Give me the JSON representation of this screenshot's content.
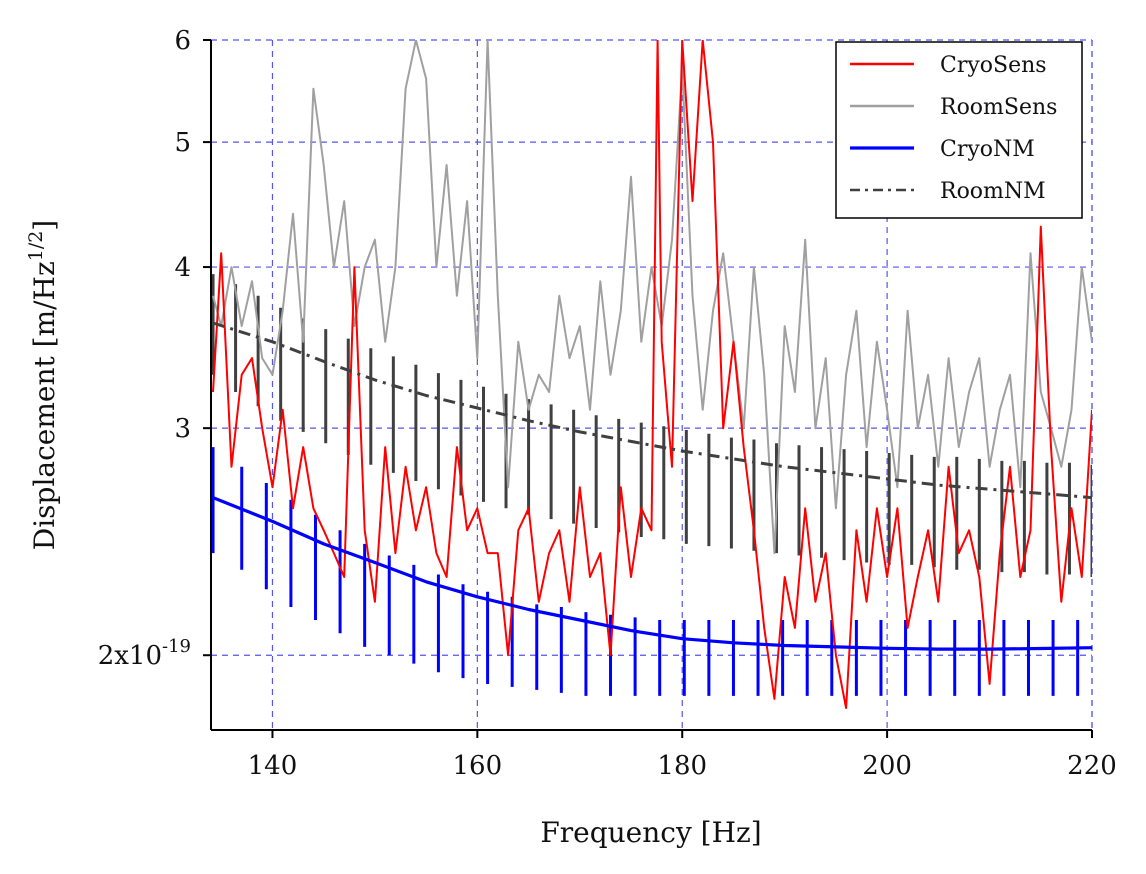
{
  "chart_data": {
    "type": "line",
    "xlabel": "Frequency [Hz]",
    "ylabel": "Displacement [m/Hz",
    "ylabel_sup": "1/2",
    "ylabel_close": "]",
    "xlim": [
      134,
      220
    ],
    "ylim": [
      1.75,
      6
    ],
    "y_scale": "log",
    "grid": true,
    "grid_color": "#5555ee",
    "legend_position": "top-right",
    "x_ticks": [
      140,
      160,
      180,
      200,
      220
    ],
    "x_tick_labels": [
      "140",
      "160",
      "180",
      "200",
      "220"
    ],
    "y_ticks": [
      2,
      3,
      4,
      5,
      6
    ],
    "y_tick_labels": [
      {
        "base": "2x10",
        "sup": "-19"
      },
      {
        "base": "3",
        "sup": ""
      },
      {
        "base": "4",
        "sup": ""
      },
      {
        "base": "5",
        "sup": ""
      },
      {
        "base": "6",
        "sup": ""
      }
    ],
    "series": [
      {
        "name": "CryoSens",
        "color": "#ff0000",
        "style": "solid",
        "x": [
          134.2,
          135,
          136,
          137,
          138,
          139,
          140,
          141,
          142,
          143,
          144,
          145,
          146,
          147,
          148,
          149,
          150,
          151,
          152,
          153,
          154,
          155,
          156,
          157,
          158,
          159,
          160,
          161,
          162,
          163,
          164,
          165,
          166,
          167,
          168,
          169,
          170,
          171,
          172,
          173,
          174,
          175,
          176,
          177,
          177.6,
          178,
          179,
          180,
          181,
          182,
          183,
          184,
          185,
          186,
          187,
          188,
          189,
          190,
          191,
          192,
          193,
          194,
          195,
          196,
          197,
          198,
          199,
          200,
          201,
          202,
          203,
          204,
          205,
          206,
          207,
          208,
          209,
          210,
          211,
          212,
          213,
          214,
          215,
          216,
          217,
          218,
          219,
          220
        ],
        "y": [
          3.2,
          4.1,
          2.8,
          3.3,
          3.4,
          3.0,
          2.7,
          3.1,
          2.6,
          2.9,
          2.6,
          2.5,
          2.4,
          2.3,
          4.0,
          2.5,
          2.2,
          2.9,
          2.4,
          2.8,
          2.5,
          2.7,
          2.4,
          2.3,
          2.9,
          2.5,
          2.6,
          2.4,
          2.4,
          2.0,
          2.5,
          2.6,
          2.2,
          2.4,
          2.5,
          2.2,
          2.7,
          2.3,
          2.4,
          2.0,
          2.7,
          2.3,
          2.6,
          2.5,
          6.0,
          3.5,
          2.8,
          6.0,
          4.5,
          6.0,
          5.0,
          3.0,
          3.5,
          2.9,
          2.5,
          2.1,
          1.85,
          2.3,
          2.1,
          2.6,
          2.2,
          2.4,
          2.0,
          1.82,
          2.5,
          2.2,
          2.6,
          2.3,
          2.6,
          2.1,
          2.3,
          2.5,
          2.2,
          2.8,
          2.4,
          2.5,
          2.3,
          1.9,
          2.4,
          2.8,
          2.3,
          2.5,
          4.3,
          2.9,
          2.2,
          2.6,
          2.3,
          3.1
        ]
      },
      {
        "name": "RoomSens",
        "color": "#a0a0a0",
        "style": "solid",
        "x": [
          134.2,
          135,
          136,
          137,
          138,
          139,
          140,
          141,
          142,
          143,
          144,
          145,
          146,
          147,
          148,
          149,
          150,
          151,
          152,
          153,
          154,
          155,
          156,
          157,
          158,
          159,
          160,
          161,
          162,
          163,
          164,
          165,
          166,
          167,
          168,
          169,
          170,
          171,
          172,
          173,
          174,
          175,
          176,
          177,
          178,
          179,
          180,
          181,
          182,
          183,
          184,
          185,
          186,
          187,
          188,
          189,
          190,
          191,
          192,
          193,
          194,
          195,
          196,
          197,
          198,
          199,
          200,
          201,
          202,
          203,
          204,
          205,
          206,
          207,
          208,
          209,
          210,
          211,
          212,
          213,
          214,
          215,
          216,
          217,
          218,
          219,
          220
        ],
        "y": [
          3.8,
          3.6,
          4.0,
          3.6,
          3.9,
          3.4,
          3.3,
          3.7,
          4.4,
          3.5,
          5.5,
          4.8,
          4.0,
          4.5,
          3.6,
          4.0,
          4.2,
          3.5,
          4.0,
          5.5,
          6.0,
          5.6,
          4.0,
          4.8,
          3.8,
          4.5,
          3.4,
          6.0,
          3.8,
          2.7,
          3.5,
          3.1,
          3.3,
          3.2,
          3.8,
          3.4,
          3.6,
          3.1,
          3.9,
          3.3,
          3.7,
          4.7,
          3.5,
          4.0,
          3.6,
          4.2,
          5.7,
          3.8,
          3.1,
          3.7,
          4.1,
          3.5,
          3.0,
          4.0,
          3.3,
          2.4,
          3.6,
          3.2,
          4.2,
          3.0,
          3.4,
          2.6,
          3.3,
          3.7,
          2.9,
          3.5,
          3.1,
          2.7,
          3.7,
          3.0,
          3.3,
          2.8,
          3.4,
          2.9,
          3.2,
          3.4,
          2.8,
          3.1,
          3.3,
          2.7,
          4.1,
          3.2,
          3.0,
          2.8,
          3.1,
          4.0,
          3.5
        ]
      },
      {
        "name": "CryoNM",
        "color": "#0000ff",
        "style": "solid",
        "x": [
          134.2,
          140,
          145,
          150,
          155,
          160,
          165,
          170,
          175,
          180,
          185,
          190,
          195,
          200,
          205,
          210,
          215,
          220
        ],
        "y": [
          2.65,
          2.54,
          2.44,
          2.36,
          2.28,
          2.22,
          2.17,
          2.13,
          2.09,
          2.06,
          2.045,
          2.035,
          2.03,
          2.025,
          2.022,
          2.022,
          2.024,
          2.027
        ],
        "error_bars": {
          "x": [
            134.2,
            137,
            139.4,
            141.8,
            144.2,
            146.6,
            149,
            151.4,
            153.8,
            156.2,
            158.6,
            161,
            163.4,
            165.8,
            168.2,
            170.6,
            173,
            175.4,
            177.8,
            180.2,
            182.6,
            185,
            187.4,
            189.8,
            192.2,
            194.6,
            197,
            199.4,
            201.8,
            204.2,
            206.6,
            209,
            211.4,
            213.8,
            216.2,
            218.6
          ],
          "low": [
            2.4,
            2.33,
            2.25,
            2.18,
            2.13,
            2.08,
            2.03,
            2.0,
            1.97,
            1.94,
            1.92,
            1.9,
            1.89,
            1.88,
            1.87,
            1.86,
            1.86,
            1.86,
            1.86,
            1.86,
            1.86,
            1.86,
            1.86,
            1.86,
            1.86,
            1.86,
            1.86,
            1.86,
            1.86,
            1.86,
            1.86,
            1.86,
            1.86,
            1.86,
            1.86,
            1.86
          ],
          "high": [
            2.9,
            2.8,
            2.72,
            2.64,
            2.57,
            2.5,
            2.44,
            2.39,
            2.35,
            2.31,
            2.27,
            2.24,
            2.22,
            2.19,
            2.18,
            2.16,
            2.15,
            2.14,
            2.13,
            2.13,
            2.13,
            2.13,
            2.13,
            2.13,
            2.13,
            2.13,
            2.13,
            2.13,
            2.13,
            2.13,
            2.13,
            2.13,
            2.13,
            2.13,
            2.13,
            2.13
          ]
        }
      },
      {
        "name": "RoomNM",
        "color": "#404040",
        "style": "dash-dot",
        "x": [
          134.2,
          140,
          145,
          150,
          155,
          160,
          165,
          170,
          175,
          180,
          185,
          190,
          195,
          200,
          205,
          210,
          215,
          220
        ],
        "y": [
          3.62,
          3.5,
          3.38,
          3.27,
          3.18,
          3.11,
          3.04,
          2.98,
          2.93,
          2.88,
          2.84,
          2.8,
          2.77,
          2.74,
          2.71,
          2.69,
          2.67,
          2.65
        ],
        "error_bars": {
          "x": [
            134.2,
            136.4,
            138.6,
            140.8,
            143,
            145.2,
            147.4,
            149.6,
            151.8,
            154,
            156.2,
            158.4,
            160.6,
            162.8,
            165,
            167.2,
            169.4,
            171.6,
            173.8,
            176,
            178.2,
            180.4,
            182.6,
            184.8,
            187,
            189.2,
            191.4,
            193.6,
            195.8,
            198,
            200.2,
            202.4,
            204.6,
            206.8,
            209,
            211.2,
            213.4,
            215.6,
            217.8,
            220
          ],
          "low": [
            3.3,
            3.2,
            3.12,
            3.04,
            2.98,
            2.92,
            2.86,
            2.81,
            2.77,
            2.73,
            2.69,
            2.66,
            2.63,
            2.6,
            2.57,
            2.55,
            2.53,
            2.51,
            2.49,
            2.47,
            2.46,
            2.44,
            2.43,
            2.42,
            2.41,
            2.4,
            2.39,
            2.38,
            2.37,
            2.36,
            2.35,
            2.35,
            2.34,
            2.33,
            2.33,
            2.32,
            2.32,
            2.31,
            2.31,
            2.3
          ],
          "high": [
            3.95,
            3.88,
            3.8,
            3.72,
            3.65,
            3.58,
            3.52,
            3.46,
            3.41,
            3.36,
            3.31,
            3.27,
            3.23,
            3.19,
            3.16,
            3.13,
            3.1,
            3.07,
            3.05,
            3.03,
            3.01,
            2.99,
            2.97,
            2.95,
            2.94,
            2.92,
            2.91,
            2.9,
            2.89,
            2.88,
            2.87,
            2.86,
            2.85,
            2.85,
            2.84,
            2.83,
            2.83,
            2.82,
            2.82,
            2.81
          ]
        }
      }
    ]
  }
}
